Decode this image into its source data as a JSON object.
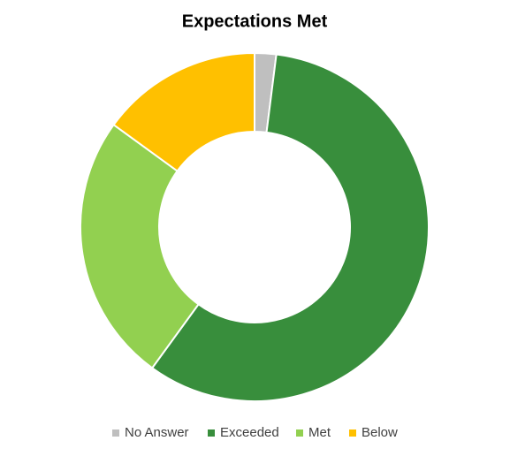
{
  "chart_data": {
    "type": "donut",
    "title": "Expectations Met",
    "categories": [
      "No Answer",
      "Exceeded",
      "Met",
      "Below"
    ],
    "values": [
      2,
      58,
      25,
      15
    ],
    "colors": [
      "#bfbfbf",
      "#388e3c",
      "#92d050",
      "#ffc000"
    ],
    "legend": "bottom"
  }
}
